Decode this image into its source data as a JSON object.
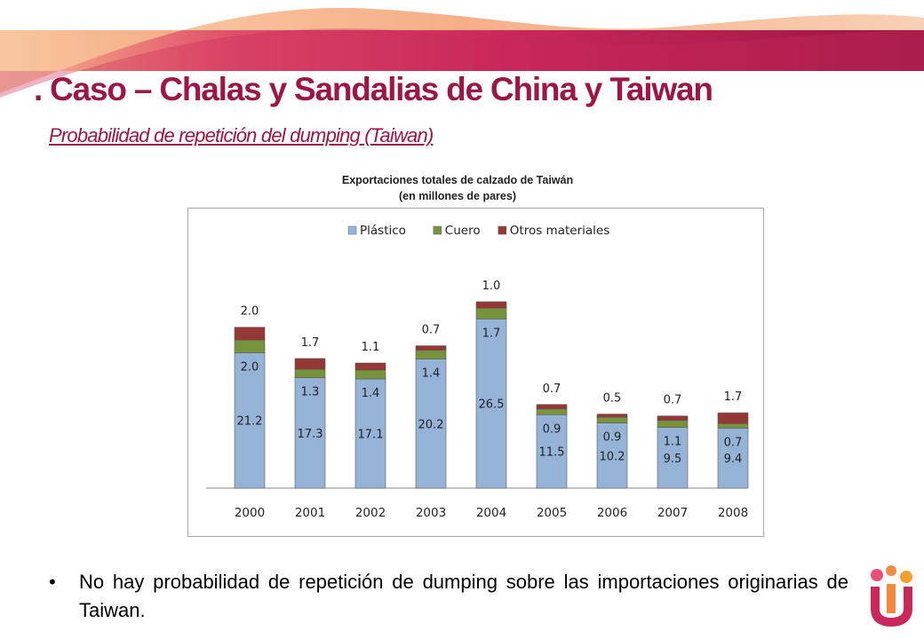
{
  "slide": {
    "title": ". Caso – Chalas y Sandalias de China y Taiwan",
    "subtitle": "Probabilidad de repetición del dumping (Taiwan)",
    "bullet": "•",
    "bullet_text": "No hay probabilidad de repetición de dumping sobre las importaciones originarias de Taiwan."
  },
  "colors": {
    "brand_dark": "#9b1746",
    "brand_mid": "#c8285a",
    "banner_orange": "#f0a070",
    "plastico": "#95b3d7",
    "cuero": "#77933c",
    "otros": "#953735"
  },
  "chart_data": {
    "type": "bar",
    "stacked": true,
    "title": "Exportaciones totales de calzado de Taiwán",
    "subtitle": "(en millones de pares)",
    "categories": [
      "2000",
      "2001",
      "2002",
      "2003",
      "2004",
      "2005",
      "2006",
      "2007",
      "2008"
    ],
    "series": [
      {
        "name": "Plástico",
        "color": "#95b3d7",
        "values": [
          21.2,
          17.3,
          17.1,
          20.2,
          26.5,
          11.5,
          10.2,
          9.5,
          9.4
        ]
      },
      {
        "name": "Cuero",
        "color": "#77933c",
        "values": [
          2.0,
          1.3,
          1.4,
          1.4,
          1.7,
          0.9,
          0.9,
          1.1,
          0.7
        ]
      },
      {
        "name": "Otros materiales",
        "color": "#953735",
        "values": [
          2.0,
          1.7,
          1.1,
          0.7,
          1.0,
          0.7,
          0.5,
          0.7,
          1.7
        ]
      }
    ],
    "legend_position": "top",
    "grid": false,
    "ylim": [
      0,
      31
    ]
  }
}
